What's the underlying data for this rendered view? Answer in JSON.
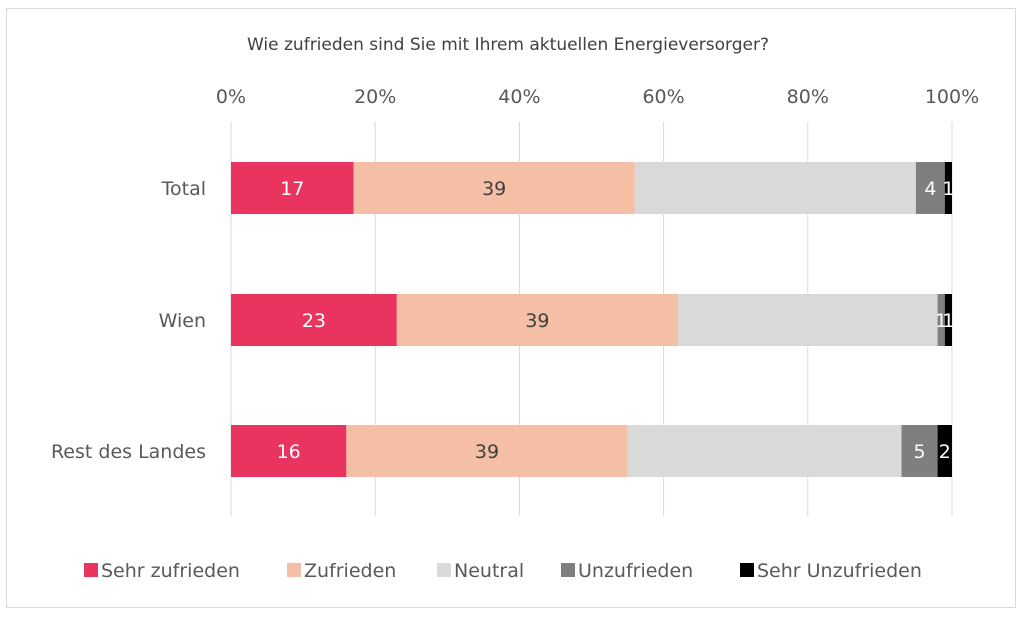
{
  "chart_data": {
    "type": "bar",
    "orientation": "horizontal",
    "stacked": true,
    "title": "Wie zufrieden sind Sie mit Ihrem aktuellen Energieversorger?",
    "categories": [
      "Total",
      "Wien",
      "Rest des Landes"
    ],
    "xlim": [
      0,
      100
    ],
    "x_ticks": [
      "0%",
      "20%",
      "40%",
      "60%",
      "80%",
      "100%"
    ],
    "x_tick_values": [
      0,
      20,
      40,
      60,
      80,
      100
    ],
    "grid": true,
    "legend_position": "bottom",
    "series": [
      {
        "name": "Sehr zufrieden",
        "color": "#e8345f",
        "label_color": "#ffffff",
        "values": [
          17,
          23,
          16
        ],
        "labels": [
          "17",
          "23",
          "16"
        ]
      },
      {
        "name": "Zufrieden",
        "color": "#f4bfa4",
        "label_color": "#404040",
        "values": [
          39,
          39,
          39
        ],
        "labels": [
          "39",
          "39",
          "39"
        ]
      },
      {
        "name": "Neutral",
        "color": "#d9d9d9",
        "label_color": "#404040",
        "values": [
          39,
          36,
          38
        ],
        "labels": [
          "",
          "",
          ""
        ]
      },
      {
        "name": "Unzufrieden",
        "color": "#7f7f7f",
        "label_color": "#ffffff",
        "values": [
          4,
          1,
          5
        ],
        "labels": [
          "4",
          "1",
          "5"
        ]
      },
      {
        "name": "Sehr Unzufrieden",
        "color": "#000000",
        "label_color": "#ffffff",
        "values": [
          1,
          1,
          2
        ],
        "labels": [
          "1",
          "1",
          "2"
        ]
      }
    ]
  }
}
